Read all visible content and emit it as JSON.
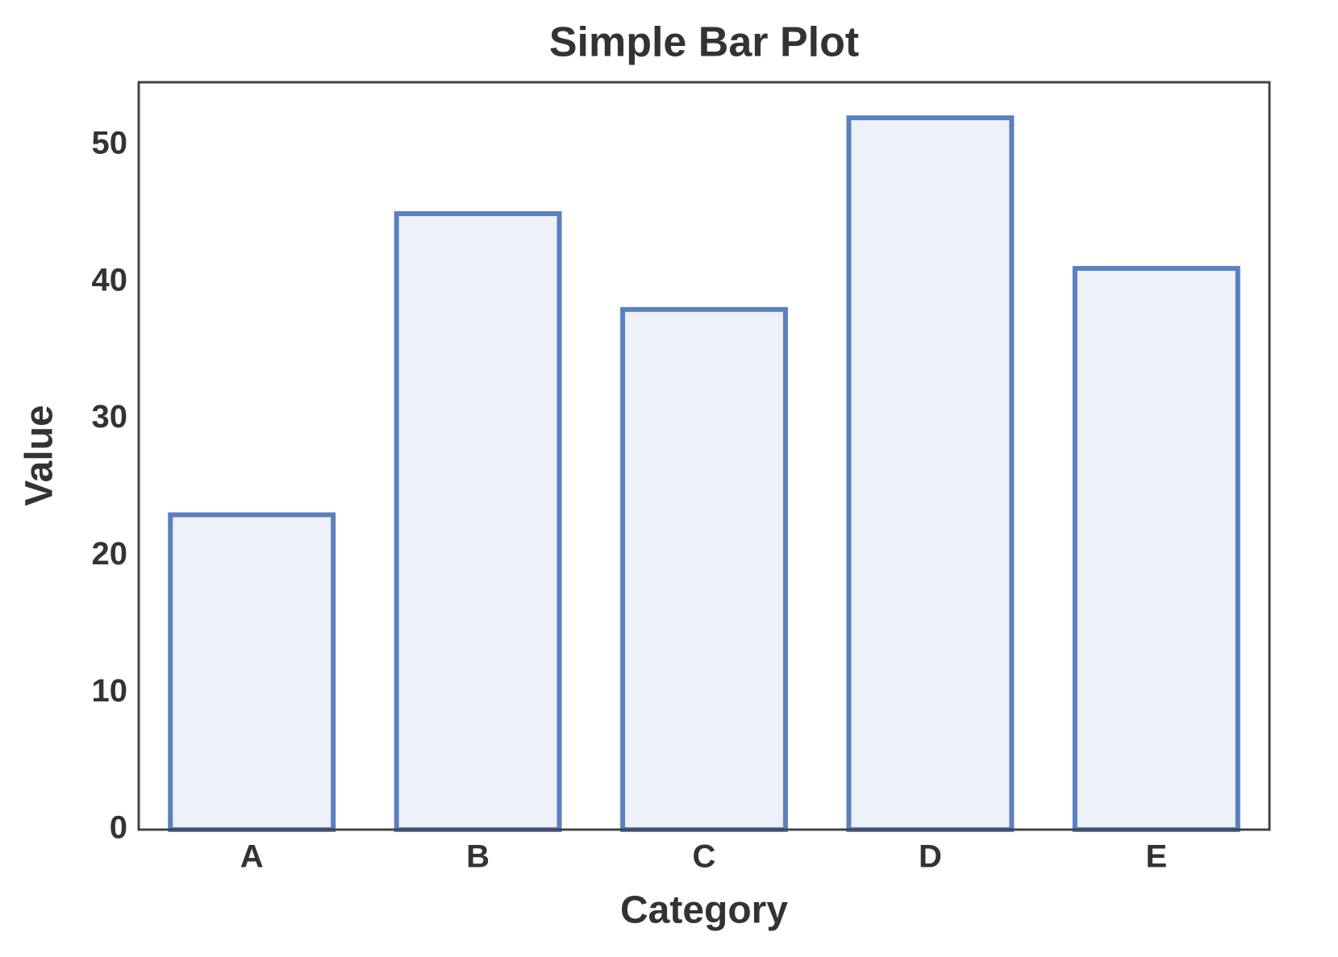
{
  "chart_data": {
    "type": "bar",
    "title": "Simple Bar Plot",
    "x_label": "Category",
    "y_label": "Value",
    "categories": [
      "A",
      "B",
      "C",
      "D",
      "E"
    ],
    "values": [
      23,
      45,
      38,
      52,
      41
    ],
    "color": "#5b7fc0",
    "fill": "#edf1f9",
    "ylim": [
      0,
      54.6
    ],
    "yticks": [
      0,
      10,
      20,
      30,
      40,
      50
    ],
    "grid": false
  }
}
